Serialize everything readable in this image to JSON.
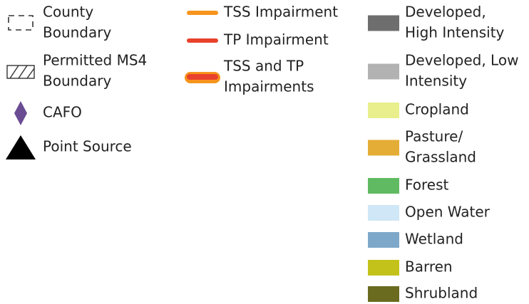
{
  "legend": {
    "columns": [
      {
        "items": [
          {
            "label": [
              "County",
              "Boundary"
            ]
          },
          {
            "label": [
              "Permitted MS4",
              "Boundary"
            ]
          },
          {
            "label": [
              "CAFO"
            ],
            "color": "#6a4c93"
          },
          {
            "label": [
              "Point Source"
            ],
            "color": "#000000"
          }
        ]
      },
      {
        "items": [
          {
            "label": [
              "TSS Impairment"
            ],
            "color": "#f7941d"
          },
          {
            "label": [
              "TP Impairment"
            ],
            "color": "#e8412c"
          },
          {
            "label": [
              "TSS and TP",
              "Impairments"
            ],
            "color": "#e8412c"
          }
        ]
      },
      {
        "items": [
          {
            "label": [
              "Developed,",
              "High Intensity"
            ],
            "color": "#6e6e6e"
          },
          {
            "label": [
              "Developed, Low",
              "Intensity"
            ],
            "color": "#b2b2b2"
          },
          {
            "label": [
              "Cropland"
            ],
            "color": "#e9ef8c"
          },
          {
            "label": [
              "Pasture/",
              "Grassland"
            ],
            "color": "#e4ad35"
          },
          {
            "label": [
              "Forest"
            ],
            "color": "#60ba62"
          },
          {
            "label": [
              "Open Water"
            ],
            "color": "#cfe7f6"
          },
          {
            "label": [
              "Wetland"
            ],
            "color": "#7ea8c9"
          },
          {
            "label": [
              "Barren"
            ],
            "color": "#c3c21b"
          },
          {
            "label": [
              "Shrubland"
            ],
            "color": "#6b6b20"
          }
        ]
      }
    ]
  }
}
